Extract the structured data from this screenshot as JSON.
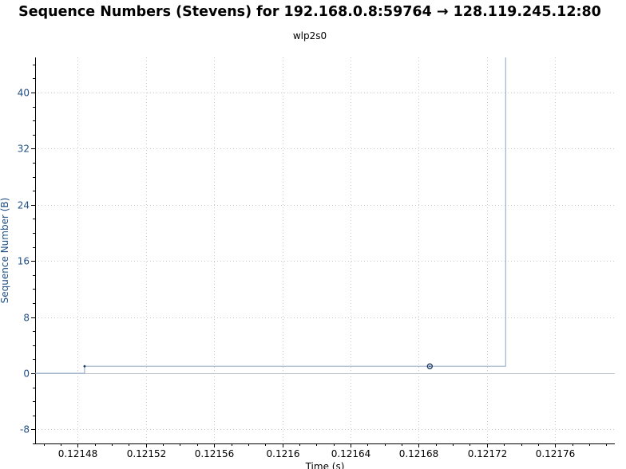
{
  "window": {
    "title": "Sequence Numbers (Stevens) for 192.168.0.8:59764 → 128.119.245.12:80",
    "subtitle": "wlp2s0"
  },
  "colors": {
    "series": "#9db3cc",
    "marker": "#1f3d66",
    "y_axis_text": "#1f4e85",
    "grid": "#c8c8c8"
  },
  "chart_data": {
    "type": "line",
    "title": "Sequence Numbers (Stevens) for 192.168.0.8:59764 → 128.119.245.12:80",
    "subtitle": "wlp2s0",
    "xlabel": "Time (s)",
    "ylabel": "Sequence Number (B)",
    "xlim": [
      0.121455,
      0.121795
    ],
    "ylim": [
      -10,
      45
    ],
    "x_ticks": [
      0.12148,
      0.12152,
      0.12156,
      0.1216,
      0.12164,
      0.12168,
      0.12172,
      0.12176
    ],
    "x_tick_labels": [
      "0.12148",
      "0.12152",
      "0.12156",
      "0.1216",
      "0.12164",
      "0.12168",
      "0.12172",
      "0.12176"
    ],
    "y_ticks": [
      -8,
      0,
      8,
      16,
      24,
      32,
      40
    ],
    "y_tick_labels": [
      "-8",
      "0",
      "8",
      "16",
      "24",
      "32",
      "40"
    ],
    "grid": true,
    "series": [
      {
        "style": "step",
        "x": [
          0.121455,
          0.121484,
          0.121484,
          0.121731,
          0.121731
        ],
        "y": [
          0,
          0,
          1,
          1,
          45
        ]
      }
    ],
    "markers": [
      {
        "x": 0.121484,
        "y": 1,
        "shape": "dot"
      },
      {
        "x": 0.1216865,
        "y": 1,
        "shape": "ring"
      }
    ]
  }
}
